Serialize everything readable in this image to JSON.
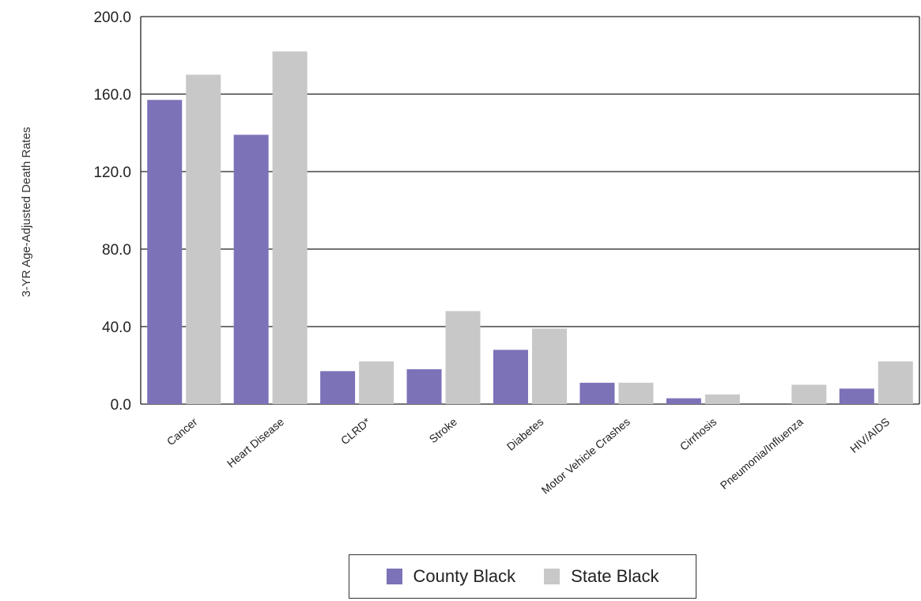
{
  "chart_data": {
    "type": "bar",
    "ylabel": "3-YR Age-Adjusted Death Rates",
    "xlabel": "",
    "ylim": [
      0,
      200
    ],
    "yticks": [
      0,
      40,
      80,
      120,
      160,
      200
    ],
    "ytick_labels": [
      "0.0",
      "40.0",
      "80.0",
      "120.0",
      "160.0",
      "200.0"
    ],
    "grid": true,
    "legend_position": "bottom",
    "categories": [
      "Cancer",
      "Heart Disease",
      "CLRD*",
      "Stroke",
      "Diabetes",
      "Motor Vehicle Crashes",
      "Cirrhosis",
      "Pneumonia/Influenza",
      "HIV/AIDS"
    ],
    "series": [
      {
        "name": "County Black",
        "color": "#7b72b8",
        "values": [
          157,
          139,
          17,
          18,
          28,
          11,
          3,
          0,
          8
        ]
      },
      {
        "name": "State Black",
        "color": "#c8c8c8",
        "values": [
          170,
          182,
          22,
          48,
          39,
          11,
          5,
          10,
          22
        ]
      }
    ]
  }
}
